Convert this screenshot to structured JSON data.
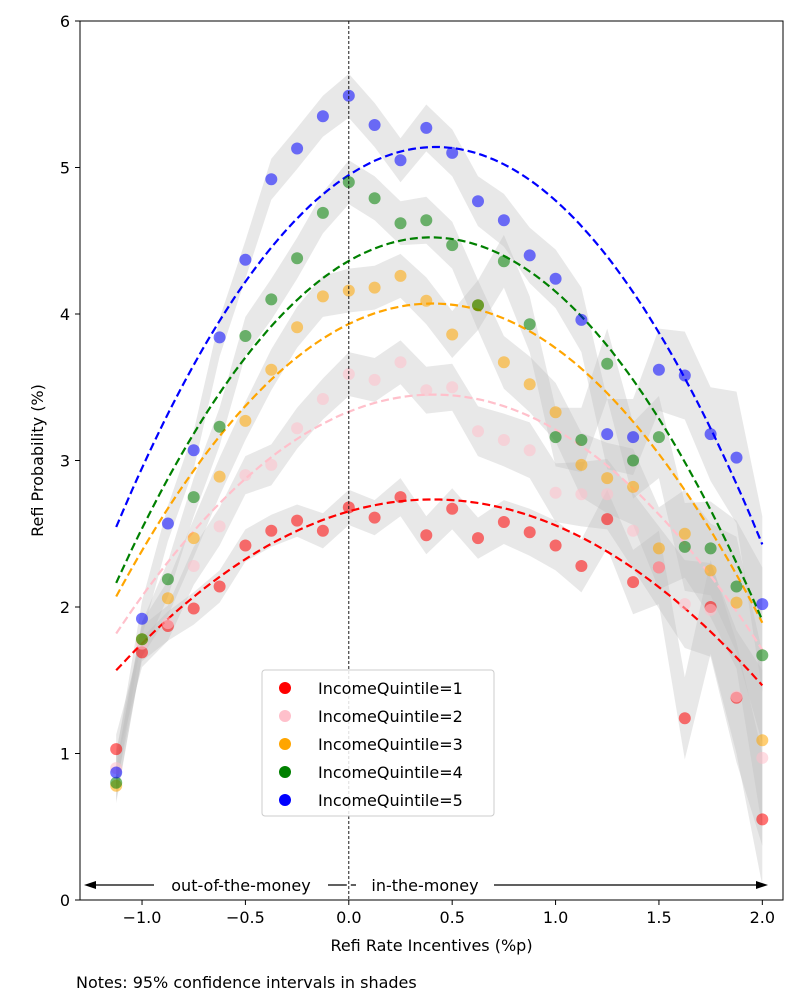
{
  "chart_data": {
    "type": "scatter",
    "xlabel": "Refi Rate Incentives (%p)",
    "ylabel": "Refi Probability (%)",
    "xlim": [
      -1.3,
      2.1
    ],
    "ylim": [
      0,
      6
    ],
    "xticks": [
      -1.0,
      -0.5,
      0.0,
      0.5,
      1.0,
      1.5,
      2.0
    ],
    "xtick_labels": [
      "−1.0",
      "−0.5",
      "0.0",
      "0.5",
      "1.0",
      "1.5",
      "2.0"
    ],
    "yticks": [
      0,
      1,
      2,
      3,
      4,
      5,
      6
    ],
    "ytick_labels": [
      "0",
      "1",
      "2",
      "3",
      "4",
      "5",
      "6"
    ],
    "grid": false,
    "legend_position": "bottom-center",
    "vline_x": 0,
    "annotations": {
      "left": "out-of-the-money",
      "right": "in-the-money"
    },
    "note": "Notes: 95% confidence intervals in shades",
    "x": [
      -1.125,
      -1.0,
      -0.875,
      -0.75,
      -0.625,
      -0.5,
      -0.375,
      -0.25,
      -0.125,
      0.0,
      0.125,
      0.25,
      0.375,
      0.5,
      0.625,
      0.75,
      0.875,
      1.0,
      1.125,
      1.25,
      1.375,
      1.5,
      1.625,
      1.75,
      1.875,
      2.0
    ],
    "series": [
      {
        "name": "IncomeQuintile=1",
        "color": "#ff0000",
        "values": [
          1.03,
          1.69,
          1.87,
          1.99,
          2.14,
          2.42,
          2.52,
          2.59,
          2.52,
          2.68,
          2.61,
          2.75,
          2.49,
          2.67,
          2.47,
          2.58,
          2.51,
          2.42,
          2.28,
          2.6,
          2.17,
          2.27,
          1.24,
          2.0,
          1.38,
          0.55
        ],
        "fit_quadratic": {
          "a": -0.4986,
          "b": 0.4033,
          "c": 2.6525
        },
        "ci_halfwidth": [
          0.1,
          0.1,
          0.1,
          0.11,
          0.11,
          0.11,
          0.11,
          0.11,
          0.12,
          0.12,
          0.12,
          0.13,
          0.13,
          0.14,
          0.14,
          0.15,
          0.16,
          0.17,
          0.18,
          0.2,
          0.22,
          0.25,
          0.28,
          0.32,
          0.38,
          0.45
        ]
      },
      {
        "name": "IncomeQuintile=2",
        "color": "#ffc0cb",
        "values": [
          0.9,
          1.75,
          1.89,
          2.28,
          2.55,
          2.9,
          2.97,
          3.22,
          3.42,
          3.59,
          3.55,
          3.67,
          3.48,
          3.5,
          3.2,
          3.14,
          3.07,
          2.78,
          2.77,
          2.77,
          2.52,
          2.27,
          2.02,
          1.98,
          1.39,
          0.97
        ],
        "fit_quadratic": {
          "a": -0.6906,
          "b": 0.5686,
          "c": 3.3328
        },
        "ci_halfwidth": [
          0.12,
          0.12,
          0.12,
          0.13,
          0.13,
          0.13,
          0.14,
          0.14,
          0.14,
          0.15,
          0.15,
          0.15,
          0.16,
          0.16,
          0.17,
          0.18,
          0.19,
          0.2,
          0.22,
          0.24,
          0.26,
          0.28,
          0.3,
          0.32,
          0.45,
          0.6
        ]
      },
      {
        "name": "IncomeQuintile=3",
        "color": "#ffa500",
        "values": [
          0.78,
          1.78,
          2.06,
          2.47,
          2.89,
          3.27,
          3.62,
          3.91,
          4.12,
          4.16,
          4.18,
          4.26,
          4.09,
          3.86,
          4.06,
          3.67,
          3.52,
          3.33,
          2.97,
          2.88,
          2.82,
          2.4,
          2.5,
          2.25,
          2.03,
          1.09
        ],
        "fit_quadratic": {
          "a": -0.8553,
          "b": 0.6913,
          "c": 3.9317
        },
        "ci_halfwidth": [
          0.12,
          0.12,
          0.12,
          0.13,
          0.13,
          0.13,
          0.14,
          0.14,
          0.14,
          0.15,
          0.15,
          0.15,
          0.16,
          0.16,
          0.17,
          0.18,
          0.19,
          0.2,
          0.22,
          0.24,
          0.26,
          0.28,
          0.3,
          0.32,
          0.45,
          0.6
        ]
      },
      {
        "name": "IncomeQuintile=4",
        "color": "#008000",
        "values": [
          0.8,
          1.78,
          2.19,
          2.75,
          3.23,
          3.85,
          4.1,
          4.38,
          4.69,
          4.9,
          4.79,
          4.62,
          4.64,
          4.47,
          4.06,
          4.36,
          3.93,
          3.16,
          3.14,
          3.66,
          3.0,
          3.16,
          2.41,
          2.4,
          2.14,
          1.67
        ],
        "fit_quadratic": {
          "a": -1.0175,
          "b": 0.8087,
          "c": 4.3621
        },
        "ci_halfwidth": [
          0.12,
          0.12,
          0.12,
          0.13,
          0.13,
          0.13,
          0.14,
          0.14,
          0.14,
          0.15,
          0.15,
          0.15,
          0.16,
          0.16,
          0.17,
          0.18,
          0.19,
          0.2,
          0.22,
          0.24,
          0.26,
          0.28,
          0.3,
          0.32,
          0.45,
          0.6
        ]
      },
      {
        "name": "IncomeQuintile=5",
        "color": "#0000ff",
        "values": [
          0.87,
          1.92,
          2.57,
          3.07,
          3.84,
          4.37,
          4.92,
          5.13,
          5.35,
          5.49,
          5.29,
          5.05,
          5.27,
          5.1,
          4.77,
          4.64,
          4.4,
          4.24,
          3.96,
          3.18,
          3.16,
          3.62,
          3.58,
          3.18,
          3.02,
          2.02
        ],
        "fit_quadratic": {
          "a": -1.0867,
          "b": 0.9129,
          "c": 4.9483
        },
        "ci_halfwidth": [
          0.12,
          0.12,
          0.12,
          0.13,
          0.13,
          0.13,
          0.14,
          0.14,
          0.14,
          0.15,
          0.15,
          0.15,
          0.16,
          0.16,
          0.17,
          0.18,
          0.19,
          0.2,
          0.22,
          0.24,
          0.26,
          0.28,
          0.3,
          0.32,
          0.45,
          0.6
        ]
      }
    ]
  }
}
